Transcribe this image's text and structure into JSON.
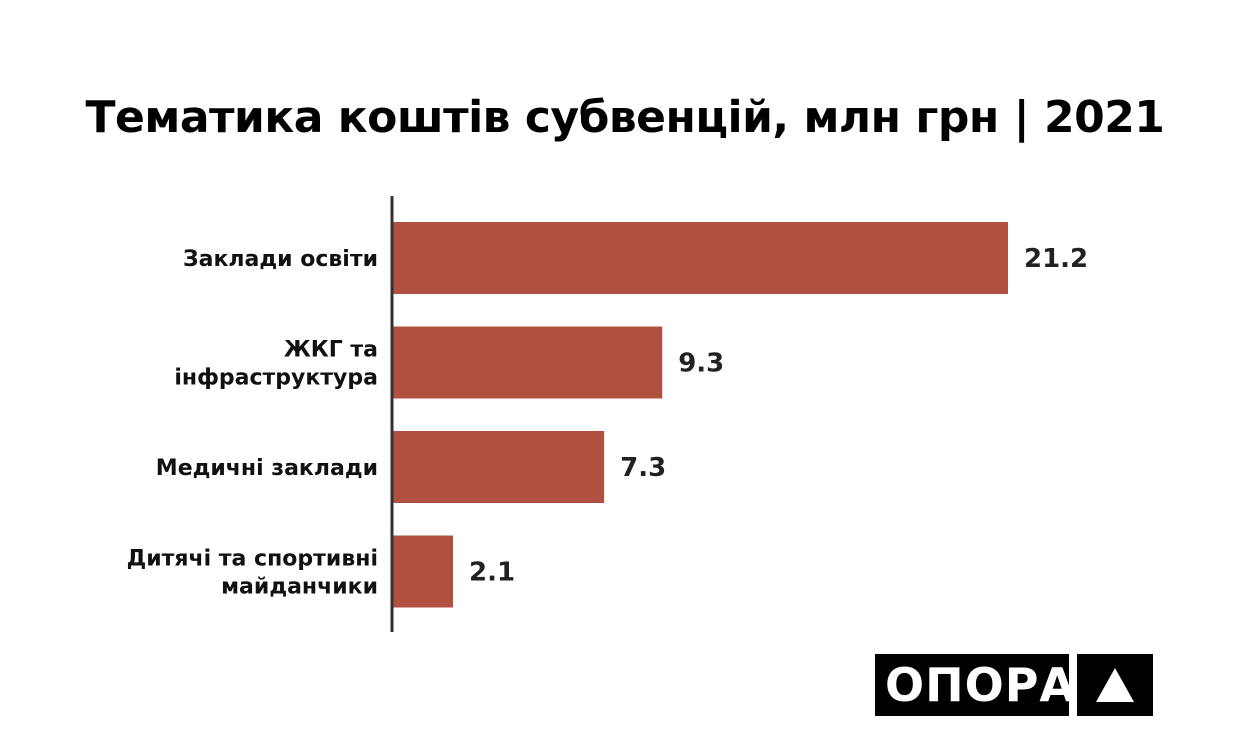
{
  "chart_data": {
    "type": "bar",
    "orientation": "horizontal",
    "title": "Тематика коштів субвенцій, млн грн | 2021",
    "categories": [
      [
        "Заклади освіти"
      ],
      [
        "ЖКГ та",
        "інфраструктура"
      ],
      [
        "Медичні заклади"
      ],
      [
        "Дитячі та спортивні",
        "майданчики"
      ]
    ],
    "values": [
      21.2,
      9.3,
      7.3,
      2.1
    ],
    "value_labels": [
      "21.2",
      "9.3",
      "7.3",
      "2.1"
    ],
    "xlim": [
      0,
      21.2
    ],
    "bar_color": "#b05040",
    "axis_color": "#333333",
    "grid": false,
    "legend": "none"
  },
  "logo": {
    "text": "ОПОРА",
    "mark_icon": "triangle-up-icon",
    "colors": {
      "background": "#000000",
      "foreground": "#ffffff"
    }
  }
}
